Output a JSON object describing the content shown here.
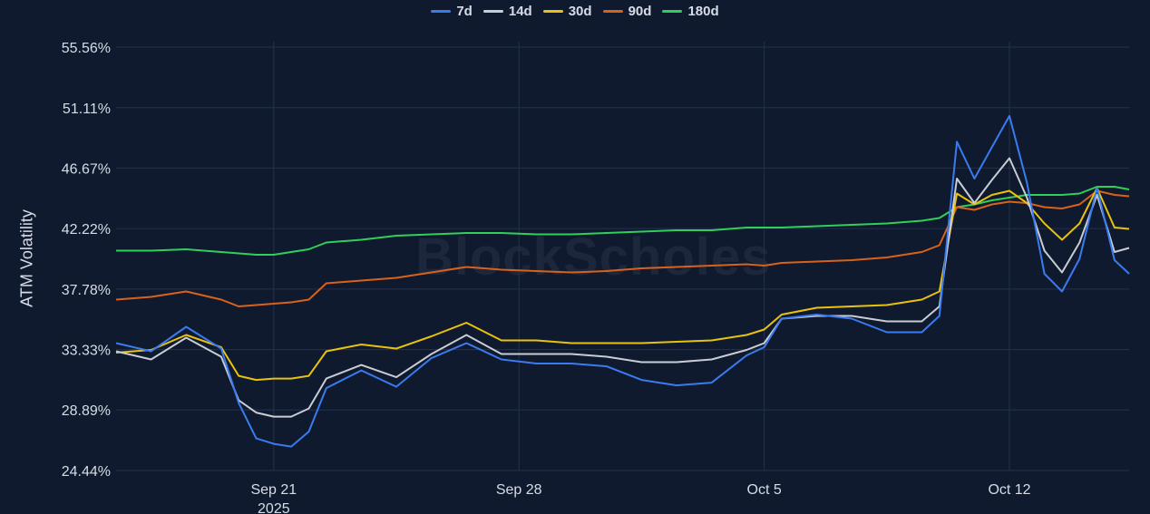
{
  "watermark": "BlockScholes",
  "chart_data": {
    "type": "line",
    "title": "",
    "xlabel": "",
    "ylabel": "ATM Volatility",
    "ylim": [
      24.44,
      55.56
    ],
    "yticks": [
      "24.44%",
      "28.89%",
      "33.33%",
      "37.78%",
      "42.22%",
      "46.67%",
      "51.11%",
      "55.56%"
    ],
    "xticks": [
      {
        "label": "Sep 21",
        "sublabel": "2025",
        "x": "2025-09-21"
      },
      {
        "label": "Sep 28",
        "sublabel": "",
        "x": "2025-09-28"
      },
      {
        "label": "Oct 5",
        "sublabel": "",
        "x": "2025-10-05"
      },
      {
        "label": "Oct 12",
        "sublabel": "",
        "x": "2025-10-12"
      }
    ],
    "xlim": [
      "2025-09-16 12:00",
      "2025-10-15 10:00"
    ],
    "grid": true,
    "legend_position": "top-center",
    "x": [
      "2025-09-16 12:00",
      "2025-09-17 12:00",
      "2025-09-18 12:00",
      "2025-09-19 12:00",
      "2025-09-20 00:00",
      "2025-09-20 12:00",
      "2025-09-21 00:00",
      "2025-09-21 12:00",
      "2025-09-22 00:00",
      "2025-09-22 12:00",
      "2025-09-23 12:00",
      "2025-09-24 12:00",
      "2025-09-25 12:00",
      "2025-09-26 12:00",
      "2025-09-27 12:00",
      "2025-09-28 12:00",
      "2025-09-29 12:00",
      "2025-09-30 12:00",
      "2025-10-01 12:00",
      "2025-10-02 12:00",
      "2025-10-03 12:00",
      "2025-10-04 12:00",
      "2025-10-05 00:00",
      "2025-10-05 12:00",
      "2025-10-06 12:00",
      "2025-10-07 12:00",
      "2025-10-08 12:00",
      "2025-10-09 12:00",
      "2025-10-10 00:00",
      "2025-10-10 12:00",
      "2025-10-11 00:00",
      "2025-10-11 12:00",
      "2025-10-12 00:00",
      "2025-10-12 12:00",
      "2025-10-13 00:00",
      "2025-10-13 12:00",
      "2025-10-14 00:00",
      "2025-10-14 12:00",
      "2025-10-15 00:00",
      "2025-10-15 10:00"
    ],
    "series": [
      {
        "name": "7d",
        "color": "#3a7bf0",
        "values": [
          33.8,
          33.2,
          35.0,
          33.4,
          29.4,
          26.8,
          26.4,
          26.2,
          27.3,
          30.5,
          31.8,
          30.6,
          32.7,
          33.8,
          32.6,
          32.3,
          32.3,
          32.1,
          31.1,
          30.7,
          30.9,
          32.9,
          33.5,
          35.6,
          35.9,
          35.6,
          34.6,
          34.6,
          35.8,
          48.6,
          45.9,
          48.2,
          50.5,
          45.6,
          38.9,
          37.6,
          40.0,
          45.2,
          39.9,
          38.9
        ]
      },
      {
        "name": "14d",
        "color": "#c9ccd4",
        "values": [
          33.2,
          32.6,
          34.2,
          32.8,
          29.6,
          28.7,
          28.4,
          28.4,
          29.0,
          31.2,
          32.2,
          31.3,
          33.0,
          34.4,
          33.0,
          33.0,
          33.0,
          32.8,
          32.4,
          32.4,
          32.6,
          33.3,
          33.8,
          35.6,
          35.8,
          35.8,
          35.4,
          35.4,
          36.5,
          45.9,
          44.1,
          45.8,
          47.4,
          44.5,
          40.6,
          39.0,
          41.2,
          44.7,
          40.5,
          40.8
        ]
      },
      {
        "name": "30d",
        "color": "#e8c20e",
        "values": [
          33.1,
          33.3,
          34.4,
          33.5,
          31.4,
          31.1,
          31.2,
          31.2,
          31.4,
          33.2,
          33.7,
          33.4,
          34.3,
          35.3,
          34.0,
          34.0,
          33.8,
          33.8,
          33.8,
          33.9,
          34.0,
          34.4,
          34.8,
          35.9,
          36.4,
          36.5,
          36.6,
          37.0,
          37.6,
          44.8,
          44.0,
          44.7,
          45.0,
          44.1,
          42.6,
          41.4,
          42.6,
          45.2,
          42.3,
          42.2
        ]
      },
      {
        "name": "90d",
        "color": "#d9621a",
        "values": [
          37.0,
          37.2,
          37.6,
          37.0,
          36.5,
          36.6,
          36.7,
          36.8,
          37.0,
          38.2,
          38.4,
          38.6,
          39.0,
          39.4,
          39.2,
          39.1,
          39.0,
          39.1,
          39.3,
          39.4,
          39.5,
          39.6,
          39.5,
          39.7,
          39.8,
          39.9,
          40.1,
          40.5,
          41.0,
          43.8,
          43.6,
          44.0,
          44.2,
          44.1,
          43.8,
          43.7,
          44.0,
          45.0,
          44.7,
          44.6
        ]
      },
      {
        "name": "180d",
        "color": "#2fd05a",
        "values": [
          40.6,
          40.6,
          40.7,
          40.5,
          40.4,
          40.3,
          40.3,
          40.5,
          40.7,
          41.2,
          41.4,
          41.7,
          41.8,
          41.9,
          41.9,
          41.8,
          41.8,
          41.9,
          42.0,
          42.1,
          42.1,
          42.3,
          42.3,
          42.3,
          42.4,
          42.5,
          42.6,
          42.8,
          43.0,
          43.8,
          44.0,
          44.3,
          44.5,
          44.7,
          44.7,
          44.7,
          44.8,
          45.3,
          45.3,
          45.1
        ]
      }
    ]
  }
}
